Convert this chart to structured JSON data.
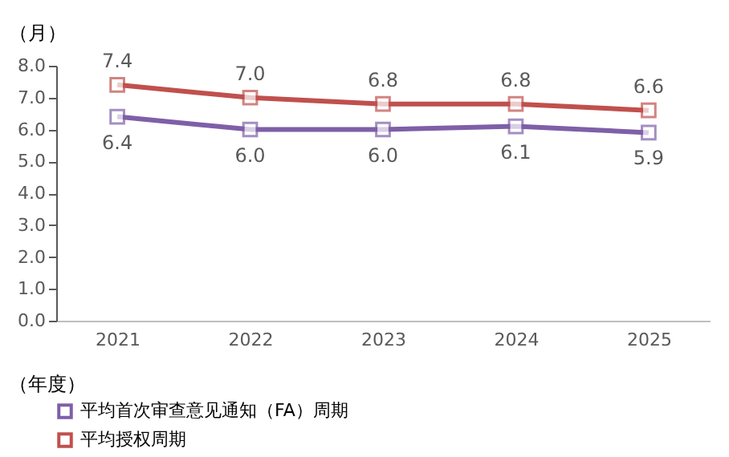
{
  "chart_data": {
    "type": "line",
    "ylabel": "（月）",
    "xlabel": "（年度）",
    "categories": [
      "2021",
      "2022",
      "2023",
      "2024",
      "2025"
    ],
    "series": [
      {
        "name": "平均首次审查意见通知（FA）周期",
        "color": "#7e5fa8",
        "values": [
          6.4,
          6.0,
          6.0,
          6.1,
          5.9
        ],
        "value_labels": [
          "6.4",
          "6.0",
          "6.0",
          "6.1",
          "5.9"
        ]
      },
      {
        "name": "平均授权周期",
        "color": "#c0504d",
        "values": [
          7.4,
          7.0,
          6.8,
          6.8,
          6.6
        ],
        "value_labels": [
          "7.4",
          "7.0",
          "6.8",
          "6.8",
          "6.6"
        ]
      }
    ],
    "ylim": [
      0,
      8
    ],
    "yticks": [
      {
        "value": 0,
        "label": "0.0"
      },
      {
        "value": 1,
        "label": "1.0"
      },
      {
        "value": 2,
        "label": "2.0"
      },
      {
        "value": 3,
        "label": "3.0"
      },
      {
        "value": 4,
        "label": "4.0"
      },
      {
        "value": 5,
        "label": "5.0"
      },
      {
        "value": 6,
        "label": "6.0"
      },
      {
        "value": 7,
        "label": "7.0"
      },
      {
        "value": 8,
        "label": "8.0"
      }
    ],
    "grid": false,
    "legend": "bottom left",
    "marker": "square",
    "line_style": "solid"
  }
}
